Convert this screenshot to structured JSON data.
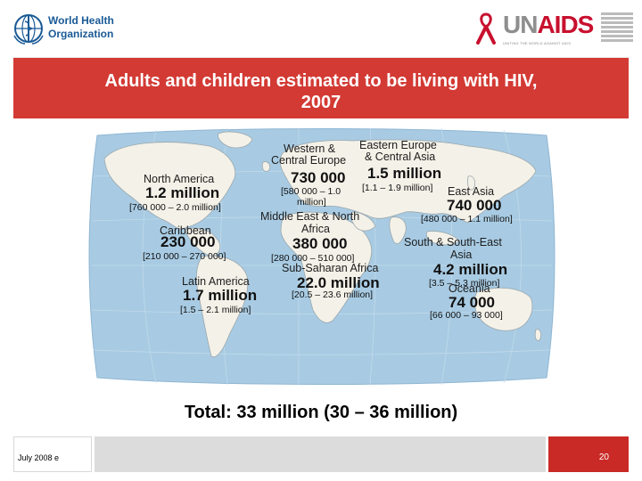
{
  "header": {
    "who_logo_text": "World Health Organization",
    "who_line1": "World Health",
    "who_line2": "Organization",
    "unaids_logo_text": "UNAIDS",
    "unaids_tagline": "UNITING THE WORLD AGAINST AIDS"
  },
  "title": {
    "line1": "Adults and children estimated to be living with HIV,",
    "line2": "2007"
  },
  "regions": {
    "north_america": {
      "name": "North America",
      "value": "1.2 million",
      "range": "[760 000 – 2.0 million]"
    },
    "caribbean": {
      "name": "Caribbean",
      "value": "230 000",
      "range": "[210 000 – 270 000]"
    },
    "latin_america": {
      "name": "Latin America",
      "value": "1.7 million",
      "range": "[1.5 – 2.1 million]"
    },
    "western_central_europe": {
      "name_line1": "Western &",
      "name_line2": "Central Europe",
      "value": "730 000",
      "range_line1": "[580 000 – 1.0",
      "range_line2": "million]"
    },
    "eastern_europe_central_asia": {
      "name_line1": "Eastern Europe",
      "name_line2": "& Central Asia",
      "value": "1.5 million",
      "range": "[1.1 – 1.9 million]"
    },
    "middle_east_north_africa": {
      "name_line1": "Middle East & North",
      "name_line2": "Africa",
      "value": "380 000",
      "range": "[280 000 – 510 000]"
    },
    "sub_saharan_africa": {
      "name": "Sub-Saharan Africa",
      "value": "22.0 million",
      "range": "[20.5 – 23.6 million]"
    },
    "east_asia": {
      "name": "East Asia",
      "value": "740 000",
      "range": "[480 000 – 1.1 million]"
    },
    "south_southeast_asia": {
      "name_line1": "South & South-East",
      "name_line2": "Asia",
      "value": "4.2 million",
      "range": "[3.5 – 5.3 million]"
    },
    "oceania": {
      "name": "Oceania",
      "value": "74 000",
      "range": "[66 000 – 93 000]"
    }
  },
  "total": "Total: 33 million (30 – 36 million)",
  "footer": {
    "date": "July 2008  e",
    "page": "20"
  },
  "colors": {
    "banner": "#d33a34",
    "page_box": "#ca2a26",
    "ocean": "#a8cbe3",
    "land": "#f4f1e8",
    "who_blue": "#1a5a96"
  }
}
